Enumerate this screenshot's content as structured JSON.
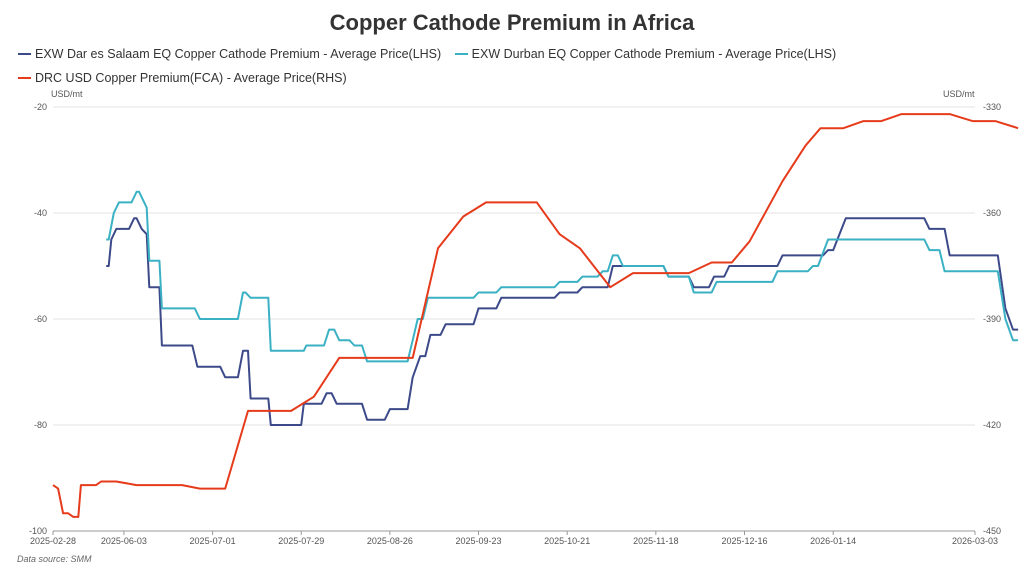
{
  "chart_data": {
    "type": "line",
    "title": "Copper Cathode Premium in Africa",
    "source": "Data source:  SMM",
    "left_axis": {
      "unit": "USD/mt",
      "ticks": [
        -20,
        -40,
        -60,
        -80,
        -100
      ],
      "range": [
        -100,
        -20
      ]
    },
    "right_axis": {
      "unit": "USD/mt",
      "ticks": [
        -330,
        -360,
        -390,
        -420,
        -450
      ],
      "range": [
        -450,
        -330
      ]
    },
    "x_axis": {
      "range": [
        0,
        364
      ],
      "ticks": [
        {
          "label": "2025-02-28",
          "day": 0
        },
        {
          "label": "2025-06-03",
          "day": 28
        },
        {
          "label": "2025-07-01",
          "day": 63
        },
        {
          "label": "2025-07-29",
          "day": 98
        },
        {
          "label": "2025-08-26",
          "day": 133
        },
        {
          "label": "2025-09-23",
          "day": 168
        },
        {
          "label": "2025-10-21",
          "day": 203
        },
        {
          "label": "2025-11-18",
          "day": 238
        },
        {
          "label": "2025-12-16",
          "day": 273
        },
        {
          "label": "2026-01-14",
          "day": 308
        },
        {
          "label": "2026-03-03",
          "day": 364
        }
      ]
    },
    "series": [
      {
        "name": "EXW Dar es Salaam EQ Copper Cathode Premium - Average Price(LHS)",
        "color": "#3d4a89",
        "axis": "left",
        "points": [
          [
            21,
            -50
          ],
          [
            22,
            -50
          ],
          [
            23,
            -45
          ],
          [
            25,
            -43
          ],
          [
            30,
            -43
          ],
          [
            32,
            -41
          ],
          [
            33,
            -41
          ],
          [
            35,
            -43
          ],
          [
            37,
            -44
          ],
          [
            38,
            -54
          ],
          [
            42,
            -54
          ],
          [
            43,
            -65
          ],
          [
            55,
            -65
          ],
          [
            57,
            -69
          ],
          [
            66,
            -69
          ],
          [
            68,
            -71
          ],
          [
            73,
            -71
          ],
          [
            75,
            -66
          ],
          [
            77,
            -66
          ],
          [
            78,
            -75
          ],
          [
            85,
            -75
          ],
          [
            86,
            -80
          ],
          [
            98,
            -80
          ],
          [
            99,
            -76
          ],
          [
            106,
            -76
          ],
          [
            108,
            -74
          ],
          [
            110,
            -74
          ],
          [
            112,
            -76
          ],
          [
            122,
            -76
          ],
          [
            124,
            -79
          ],
          [
            131,
            -79
          ],
          [
            133,
            -77
          ],
          [
            140,
            -77
          ],
          [
            142,
            -71
          ],
          [
            145,
            -67
          ],
          [
            147,
            -67
          ],
          [
            149,
            -63
          ],
          [
            153,
            -63
          ],
          [
            155,
            -61
          ],
          [
            166,
            -61
          ],
          [
            168,
            -58
          ],
          [
            175,
            -58
          ],
          [
            177,
            -56
          ],
          [
            198,
            -56
          ],
          [
            200,
            -55
          ],
          [
            207,
            -55
          ],
          [
            209,
            -54
          ],
          [
            219,
            -54
          ],
          [
            221,
            -50
          ],
          [
            241,
            -50
          ],
          [
            243,
            -52
          ],
          [
            251,
            -52
          ],
          [
            253,
            -54
          ],
          [
            259,
            -54
          ],
          [
            261,
            -52
          ],
          [
            265,
            -52
          ],
          [
            267,
            -50
          ],
          [
            286,
            -50
          ],
          [
            288,
            -48
          ],
          [
            304,
            -48
          ],
          [
            306,
            -47
          ],
          [
            308,
            -47
          ],
          [
            313,
            -41
          ],
          [
            344,
            -41
          ],
          [
            346,
            -43
          ],
          [
            352,
            -43
          ],
          [
            354,
            -48
          ],
          [
            373,
            -48
          ],
          [
            376,
            -58
          ],
          [
            379,
            -62
          ],
          [
            381,
            -62
          ]
        ]
      },
      {
        "name": "EXW Durban EQ Copper Cathode Premium - Average Price(LHS)",
        "color": "#3bb1c4",
        "axis": "left",
        "points": [
          [
            21,
            -45
          ],
          [
            22,
            -45
          ],
          [
            24,
            -40
          ],
          [
            26,
            -38
          ],
          [
            31,
            -38
          ],
          [
            33,
            -36
          ],
          [
            34,
            -36
          ],
          [
            36,
            -38
          ],
          [
            37,
            -39
          ],
          [
            38,
            -49
          ],
          [
            42,
            -49
          ],
          [
            43,
            -58
          ],
          [
            56,
            -58
          ],
          [
            58,
            -60
          ],
          [
            73,
            -60
          ],
          [
            75,
            -55
          ],
          [
            76,
            -55
          ],
          [
            78,
            -56
          ],
          [
            85,
            -56
          ],
          [
            86,
            -66
          ],
          [
            99,
            -66
          ],
          [
            100,
            -65
          ],
          [
            107,
            -65
          ],
          [
            109,
            -62
          ],
          [
            111,
            -62
          ],
          [
            113,
            -64
          ],
          [
            117,
            -64
          ],
          [
            119,
            -65
          ],
          [
            122,
            -65
          ],
          [
            124,
            -68
          ],
          [
            140,
            -68
          ],
          [
            142,
            -64
          ],
          [
            144,
            -60
          ],
          [
            146,
            -60
          ],
          [
            148,
            -56
          ],
          [
            166,
            -56
          ],
          [
            168,
            -55
          ],
          [
            175,
            -55
          ],
          [
            177,
            -54
          ],
          [
            198,
            -54
          ],
          [
            200,
            -53
          ],
          [
            207,
            -53
          ],
          [
            209,
            -52
          ],
          [
            215,
            -52
          ],
          [
            217,
            -51
          ],
          [
            219,
            -51
          ],
          [
            221,
            -48
          ],
          [
            223,
            -48
          ],
          [
            225,
            -50
          ],
          [
            241,
            -50
          ],
          [
            243,
            -52
          ],
          [
            251,
            -52
          ],
          [
            253,
            -55
          ],
          [
            260,
            -55
          ],
          [
            262,
            -53
          ],
          [
            284,
            -53
          ],
          [
            286,
            -51
          ],
          [
            298,
            -51
          ],
          [
            300,
            -50
          ],
          [
            302,
            -50
          ],
          [
            306,
            -45
          ],
          [
            344,
            -45
          ],
          [
            346,
            -47
          ],
          [
            350,
            -47
          ],
          [
            352,
            -51
          ],
          [
            373,
            -51
          ],
          [
            376,
            -60
          ],
          [
            379,
            -64
          ],
          [
            381,
            -64
          ]
        ]
      },
      {
        "name": "DRC USD Copper Premium(FCA) - Average Price(RHS)",
        "color": "#e63b1b",
        "axis": "right",
        "points": [
          [
            0,
            -437
          ],
          [
            2,
            -438
          ],
          [
            4,
            -445
          ],
          [
            6,
            -445
          ],
          [
            8,
            -446
          ],
          [
            10,
            -446
          ],
          [
            11,
            -437
          ],
          [
            17,
            -437
          ],
          [
            19,
            -436
          ],
          [
            25,
            -436
          ],
          [
            33,
            -437
          ],
          [
            51,
            -437
          ],
          [
            58,
            -438
          ],
          [
            68,
            -438
          ],
          [
            77,
            -416
          ],
          [
            94,
            -416
          ],
          [
            103,
            -412
          ],
          [
            113,
            -401
          ],
          [
            142,
            -401
          ],
          [
            152,
            -370
          ],
          [
            162,
            -361
          ],
          [
            171,
            -357
          ],
          [
            191,
            -357
          ],
          [
            200,
            -366
          ],
          [
            208,
            -370
          ],
          [
            220,
            -381
          ],
          [
            229,
            -377
          ],
          [
            251,
            -377
          ],
          [
            260,
            -374
          ],
          [
            268,
            -374
          ],
          [
            275,
            -368
          ],
          [
            288,
            -351
          ],
          [
            297,
            -341
          ],
          [
            303,
            -336
          ],
          [
            312,
            -336
          ],
          [
            320,
            -334
          ],
          [
            327,
            -334
          ],
          [
            335,
            -332
          ],
          [
            354,
            -332
          ],
          [
            363,
            -334
          ],
          [
            372,
            -334
          ],
          [
            381,
            -336
          ]
        ]
      }
    ]
  }
}
